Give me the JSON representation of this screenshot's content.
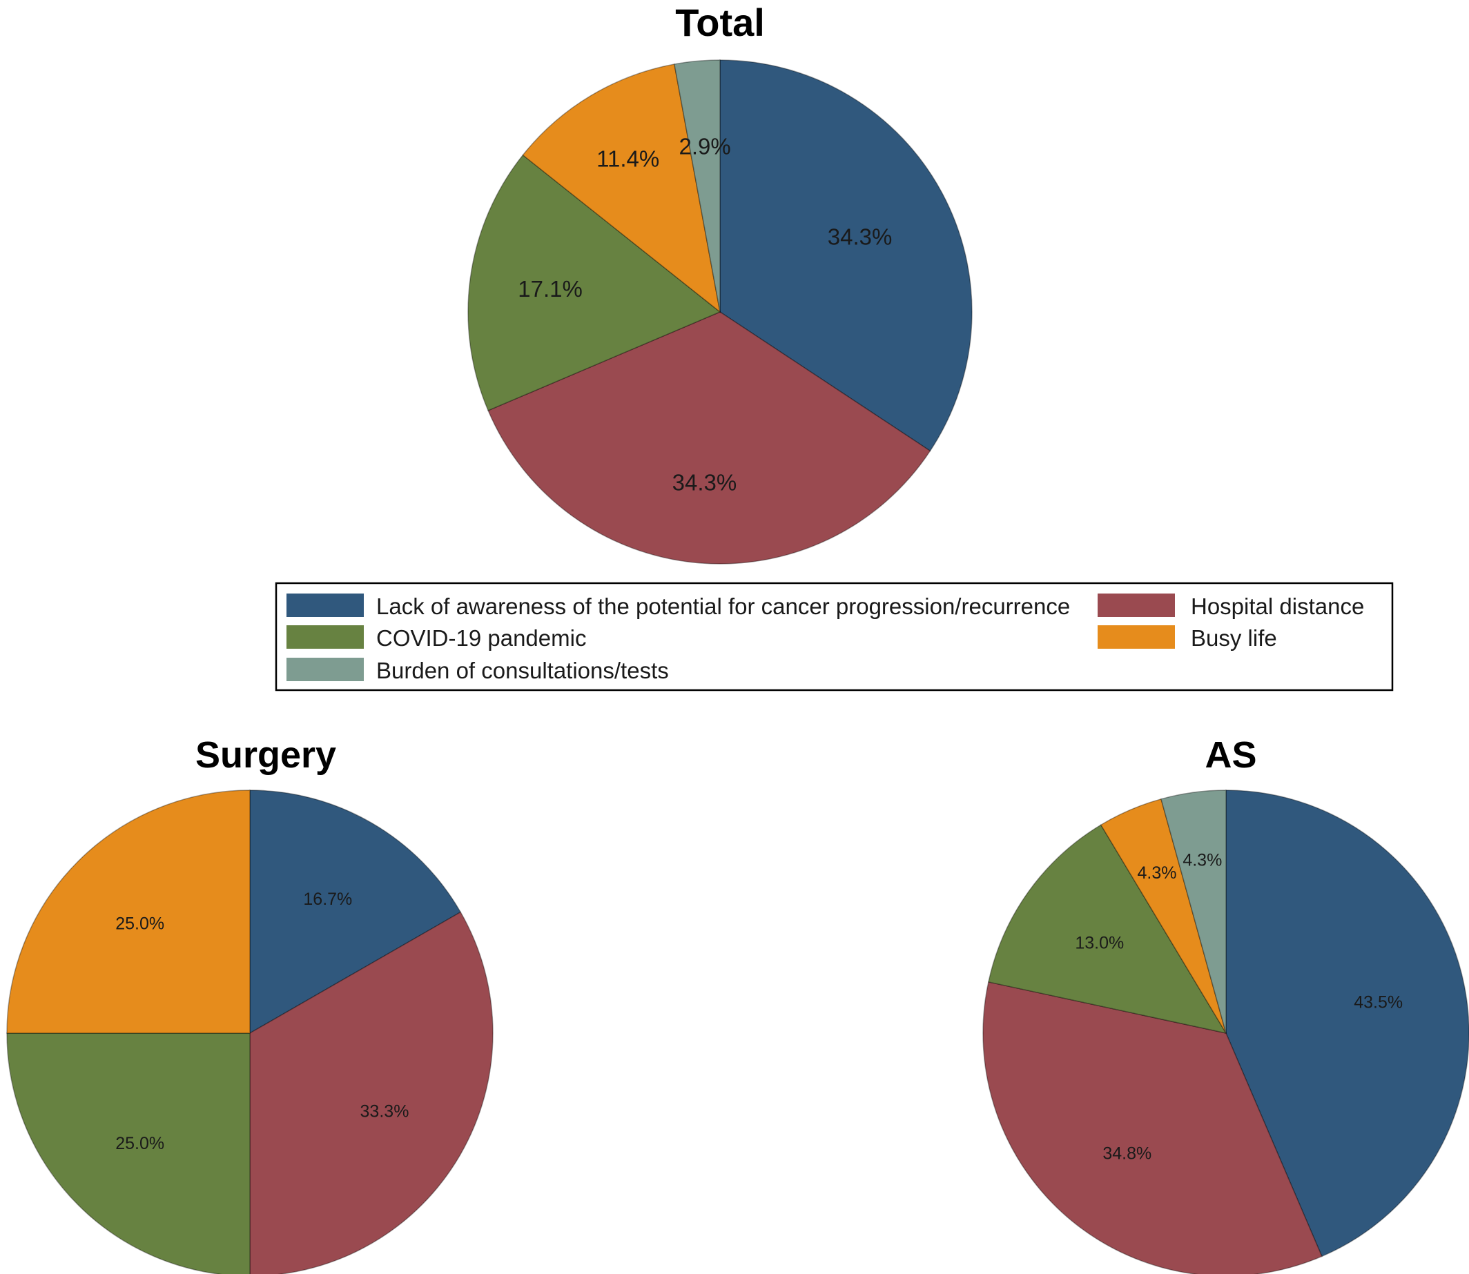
{
  "colors": {
    "Lack of awareness of the potential for cancer progression/recurrence": "#30587d",
    "Hospital distance": "#9a4a50",
    "COVID-19 pandemic": "#678241",
    "Busy life": "#e68c1c",
    "Burden of consultations/tests": "#7e9c91"
  },
  "legend": {
    "items": [
      "Lack of awareness of the potential for cancer progression/recurrence",
      "Hospital distance",
      "COVID-19 pandemic",
      "Busy life",
      "Burden of consultations/tests"
    ]
  },
  "chart_data": [
    {
      "type": "pie",
      "title": "Total",
      "labels": [
        "Lack of awareness of the potential for cancer progression/recurrence",
        "Hospital distance",
        "COVID-19 pandemic",
        "Busy life",
        "Burden of consultations/tests"
      ],
      "values": [
        34.3,
        34.3,
        17.1,
        11.4,
        2.9
      ],
      "value_labels": [
        "34.3%",
        "34.3%",
        "17.1%",
        "11.4%",
        "2.9%"
      ]
    },
    {
      "type": "pie",
      "title": "Surgery",
      "labels": [
        "Lack of awareness of the potential for cancer progression/recurrence",
        "Hospital distance",
        "COVID-19 pandemic",
        "Busy life"
      ],
      "values": [
        16.7,
        33.3,
        25.0,
        25.0
      ],
      "value_labels": [
        "16.7%",
        "33.3%",
        "25.0%",
        "25.0%"
      ]
    },
    {
      "type": "pie",
      "title": "AS",
      "labels": [
        "Lack of awareness of the potential for cancer progression/recurrence",
        "Hospital distance",
        "COVID-19 pandemic",
        "Busy life",
        "Burden of consultations/tests"
      ],
      "values": [
        43.5,
        34.8,
        13.0,
        4.3,
        4.3
      ],
      "value_labels": [
        "43.5%",
        "34.8%",
        "13.0%",
        "4.3%",
        "4.3%"
      ]
    }
  ]
}
